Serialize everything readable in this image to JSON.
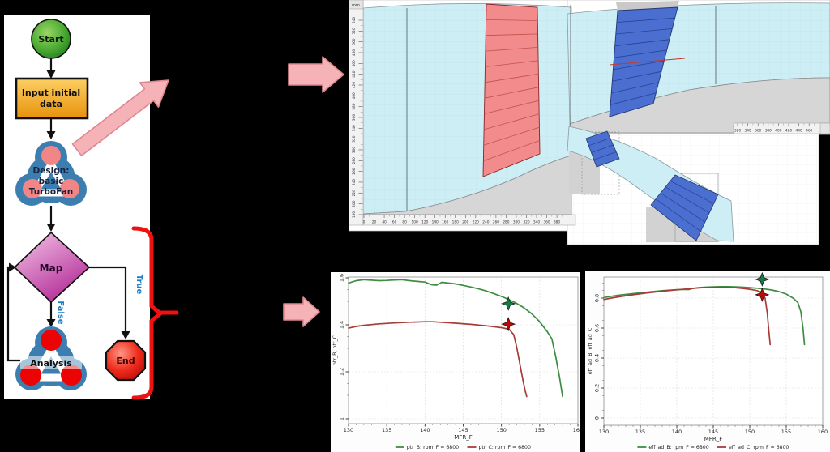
{
  "flowchart": {
    "start": "Start",
    "input_lines": [
      "Input initial",
      "data"
    ],
    "design_lines": [
      "Design:",
      "basic",
      "TurboFan"
    ],
    "map": "Map",
    "true_label": "True",
    "false_label": "False",
    "analysis": "Analysis",
    "end": "End",
    "colors": {
      "start_green": "#4aa832",
      "input_orange": "#f2a915",
      "map_magenta": "#c238a8",
      "end_red": "#d81515",
      "node_blue": "#3c7eb0",
      "branch_label_blue": "#1f7ec2",
      "brace_red": "#ee1111",
      "pink_arrow": "#f6b3b7"
    }
  },
  "cad": {
    "unit_label": "mm",
    "vruler_labels": [
      540,
      520,
      500,
      480,
      460,
      440,
      420,
      400,
      380,
      360,
      340,
      320,
      300,
      280,
      260,
      240,
      220,
      200,
      180
    ],
    "hruler_left_labels": [
      0,
      20,
      40,
      60,
      80,
      100,
      120,
      140,
      160,
      180,
      200,
      220,
      240,
      260,
      280,
      300,
      320,
      340,
      360,
      380
    ],
    "hruler_right_labels": [
      320,
      340,
      360,
      380,
      400,
      420,
      440,
      460
    ],
    "colors": {
      "flowpath_cyan": "#cdeef4",
      "fan_blade_red": "#f28b8b",
      "core_blade_blue": "#4b6fd0",
      "hub_gray": "#d6d6d6",
      "design_line_red": "#c0392b"
    }
  },
  "chart_data": [
    {
      "type": "line",
      "xlabel": "MFR_F",
      "ylabel": "ptr_B, ptr_C",
      "xlim": [
        130,
        160
      ],
      "ylim": [
        1,
        1.6
      ],
      "xticks": [
        130,
        135,
        140,
        145,
        150,
        155,
        160
      ],
      "yticks": [
        1,
        1.2,
        1.4,
        1.6
      ],
      "grid": true,
      "legend_position": "bottom",
      "series": [
        {
          "name": "ptr_B: rpm_F = 6800",
          "color": "#3d8c40",
          "x": [
            130,
            131,
            132,
            133,
            134,
            135,
            136,
            137,
            138,
            139,
            140,
            140.8,
            141.5,
            142.2,
            143,
            144,
            145,
            146,
            147,
            148,
            149,
            150,
            151,
            152,
            153,
            154,
            155,
            156,
            156.6,
            157.1,
            157.6,
            158
          ],
          "y": [
            1.578,
            1.588,
            1.592,
            1.59,
            1.588,
            1.589,
            1.591,
            1.592,
            1.588,
            1.585,
            1.582,
            1.571,
            1.569,
            1.581,
            1.578,
            1.574,
            1.568,
            1.561,
            1.553,
            1.544,
            1.533,
            1.521,
            1.507,
            1.491,
            1.471,
            1.446,
            1.413,
            1.37,
            1.34,
            1.265,
            1.175,
            1.095
          ]
        },
        {
          "name": "ptr_C: rpm_F = 6800",
          "color": "#a63c38",
          "x": [
            130,
            131,
            132,
            134,
            136,
            138,
            140,
            141,
            142,
            144,
            146,
            148,
            150,
            151,
            151.6,
            152,
            152.4,
            152.8,
            153.1,
            153.3
          ],
          "y": [
            1.386,
            1.393,
            1.398,
            1.404,
            1.408,
            1.411,
            1.413,
            1.413,
            1.411,
            1.407,
            1.402,
            1.396,
            1.388,
            1.381,
            1.358,
            1.305,
            1.235,
            1.165,
            1.12,
            1.095
          ]
        }
      ],
      "markers": [
        {
          "x": 150.9,
          "y": 1.49,
          "color": "#157a45"
        },
        {
          "x": 150.9,
          "y": 1.403,
          "color": "#c00808"
        }
      ]
    },
    {
      "type": "line",
      "xlabel": "MFR_F",
      "ylabel": "eff_ad_B, eff_ad_C",
      "xlim": [
        130,
        160
      ],
      "ylim": [
        0,
        0.95
      ],
      "xticks": [
        130,
        135,
        140,
        145,
        150,
        155,
        160
      ],
      "yticks": [
        0,
        0.2,
        0.4,
        0.6,
        0.8
      ],
      "grid": true,
      "legend_position": "bottom",
      "series": [
        {
          "name": "eff_ad_B: rpm_F = 6800",
          "color": "#3d8c40",
          "x": [
            130,
            131,
            132,
            134,
            136,
            138,
            140,
            141,
            141.6,
            142.3,
            143,
            144,
            145,
            146,
            147,
            148,
            149,
            150,
            151,
            152,
            153,
            154,
            155,
            156,
            156.6,
            157,
            157.3,
            157.5
          ],
          "y": [
            0.803,
            0.812,
            0.819,
            0.83,
            0.84,
            0.849,
            0.856,
            0.858,
            0.857,
            0.866,
            0.87,
            0.873,
            0.875,
            0.876,
            0.876,
            0.875,
            0.873,
            0.87,
            0.866,
            0.861,
            0.854,
            0.843,
            0.827,
            0.798,
            0.77,
            0.71,
            0.6,
            0.49
          ]
        },
        {
          "name": "eff_ad_C: rpm_F = 6800",
          "color": "#a63c38",
          "x": [
            130,
            131,
            132,
            134,
            136,
            138,
            140,
            142,
            143,
            144,
            145,
            146,
            147,
            148,
            149,
            150,
            151,
            151.7,
            152.1,
            152.4,
            152.6,
            152.8
          ],
          "y": [
            0.79,
            0.8,
            0.808,
            0.822,
            0.835,
            0.846,
            0.855,
            0.864,
            0.868,
            0.871,
            0.872,
            0.872,
            0.871,
            0.869,
            0.865,
            0.859,
            0.85,
            0.838,
            0.8,
            0.7,
            0.59,
            0.49
          ]
        }
      ],
      "markers": [
        {
          "x": 151.7,
          "y": 0.925,
          "color": "#157a45"
        },
        {
          "x": 151.7,
          "y": 0.822,
          "color": "#c00808"
        }
      ]
    }
  ]
}
